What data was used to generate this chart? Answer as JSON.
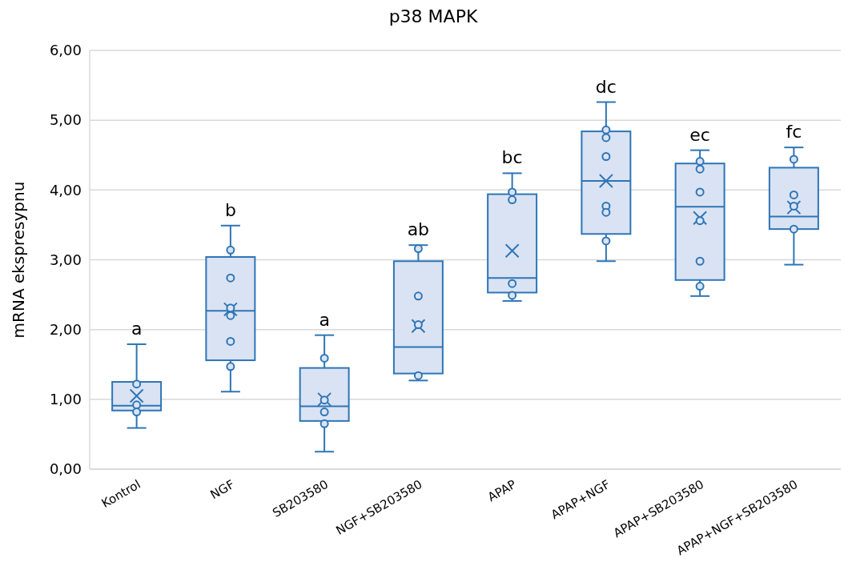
{
  "chart_data": {
    "type": "box",
    "title": "p38 MAPK",
    "ylabel": "mRNA ekspresypnu",
    "categories": [
      "Kontrol",
      "NGF",
      "SB203580",
      "NGF+SB203580",
      "APAP",
      "APAP+NGF",
      "APAP+SB203580",
      "APAP+NGF+SB203580"
    ],
    "ylim": [
      0,
      6
    ],
    "yticks": [
      {
        "value": 0,
        "label": "0,00"
      },
      {
        "value": 1,
        "label": "1,00"
      },
      {
        "value": 2,
        "label": "2,00"
      },
      {
        "value": 3,
        "label": "3,00"
      },
      {
        "value": 4,
        "label": "4,00"
      },
      {
        "value": 5,
        "label": "5,00"
      },
      {
        "value": 6,
        "label": "6,00"
      }
    ],
    "grid": "y",
    "series": [
      {
        "color": "#2e75b6",
        "boxes": [
          {
            "low": 0.59,
            "q1": 0.84,
            "median": 0.91,
            "q3": 1.25,
            "high": 1.79,
            "mean": 1.05
          },
          {
            "low": 1.11,
            "q1": 1.56,
            "median": 2.27,
            "q3": 3.04,
            "high": 3.49,
            "mean": 2.29
          },
          {
            "low": 0.25,
            "q1": 0.69,
            "median": 0.9,
            "q3": 1.45,
            "high": 1.92,
            "mean": 1.0
          },
          {
            "low": 1.27,
            "q1": 1.37,
            "median": 1.75,
            "q3": 2.98,
            "high": 3.21,
            "mean": 2.05
          },
          {
            "low": 2.41,
            "q1": 2.53,
            "median": 2.74,
            "q3": 3.94,
            "high": 4.24,
            "mean": 3.13
          },
          {
            "low": 2.98,
            "q1": 3.37,
            "median": 4.13,
            "q3": 4.84,
            "high": 5.26,
            "mean": 4.13
          },
          {
            "low": 2.48,
            "q1": 2.71,
            "median": 3.76,
            "q3": 4.38,
            "high": 4.57,
            "mean": 3.6
          },
          {
            "low": 2.93,
            "q1": 3.44,
            "median": 3.62,
            "q3": 4.32,
            "high": 4.61,
            "mean": 3.75
          }
        ]
      },
      {
        "type": "scatter",
        "color": "#2e75b6",
        "marker": "circle",
        "x": [
          "Kontrol",
          "Kontrol",
          "Kontrol",
          "NGF",
          "NGF",
          "NGF",
          "NGF",
          "NGF",
          "NGF",
          "SB203580",
          "SB203580",
          "SB203580",
          "SB203580",
          "NGF+SB203580",
          "NGF+SB203580",
          "NGF+SB203580",
          "NGF+SB203580",
          "APAP",
          "APAP",
          "APAP",
          "APAP",
          "APAP+NGF",
          "APAP+NGF",
          "APAP+NGF",
          "APAP+NGF",
          "APAP+NGF",
          "APAP+NGF",
          "APAP+SB203580",
          "APAP+SB203580",
          "APAP+SB203580",
          "APAP+SB203580",
          "APAP+SB203580",
          "APAP+SB203580",
          "APAP+NGF+SB203580",
          "APAP+NGF+SB203580",
          "APAP+NGF+SB203580",
          "APAP+NGF+SB203580"
        ],
        "values": [
          1.22,
          0.92,
          0.82,
          3.14,
          2.74,
          2.31,
          2.2,
          1.83,
          1.47,
          1.59,
          0.99,
          0.82,
          0.65,
          3.16,
          2.48,
          2.07,
          1.34,
          3.97,
          3.86,
          2.66,
          2.49,
          4.86,
          4.75,
          4.48,
          3.77,
          3.68,
          3.27,
          4.41,
          4.3,
          3.97,
          3.56,
          2.98,
          2.62,
          4.44,
          3.93,
          3.77,
          3.44
        ]
      }
    ],
    "annotations": [
      {
        "text": "a",
        "x": "Kontrol",
        "y": 1.79
      },
      {
        "text": "b",
        "x": "NGF",
        "y": 3.49
      },
      {
        "text": "a",
        "x": "SB203580",
        "y": 1.92
      },
      {
        "text": "ab",
        "x": "NGF+SB203580",
        "y": 3.21
      },
      {
        "text": "bc",
        "x": "APAP",
        "y": 4.24
      },
      {
        "text": "dc",
        "x": "APAP+NGF",
        "y": 5.26
      },
      {
        "text": "ec",
        "x": "APAP+SB203580",
        "y": 4.57
      },
      {
        "text": "fc",
        "x": "APAP+NGF+SB203580",
        "y": 4.61
      }
    ]
  }
}
